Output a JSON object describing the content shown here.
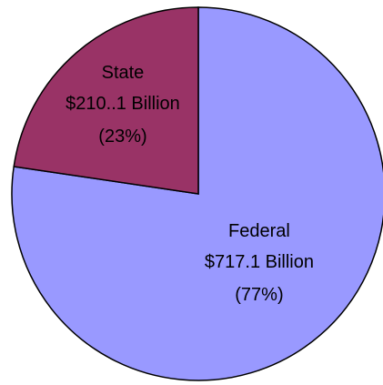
{
  "chart_data": {
    "type": "pie",
    "categories": [
      "Federal",
      "State"
    ],
    "values": [
      717.1,
      210.1
    ],
    "value_labels": [
      "$717.1 Billion",
      "$210..1 Billion"
    ],
    "percent_labels": [
      "(77%)",
      "(23%)"
    ],
    "colors": [
      "#9999ff",
      "#993366"
    ]
  }
}
